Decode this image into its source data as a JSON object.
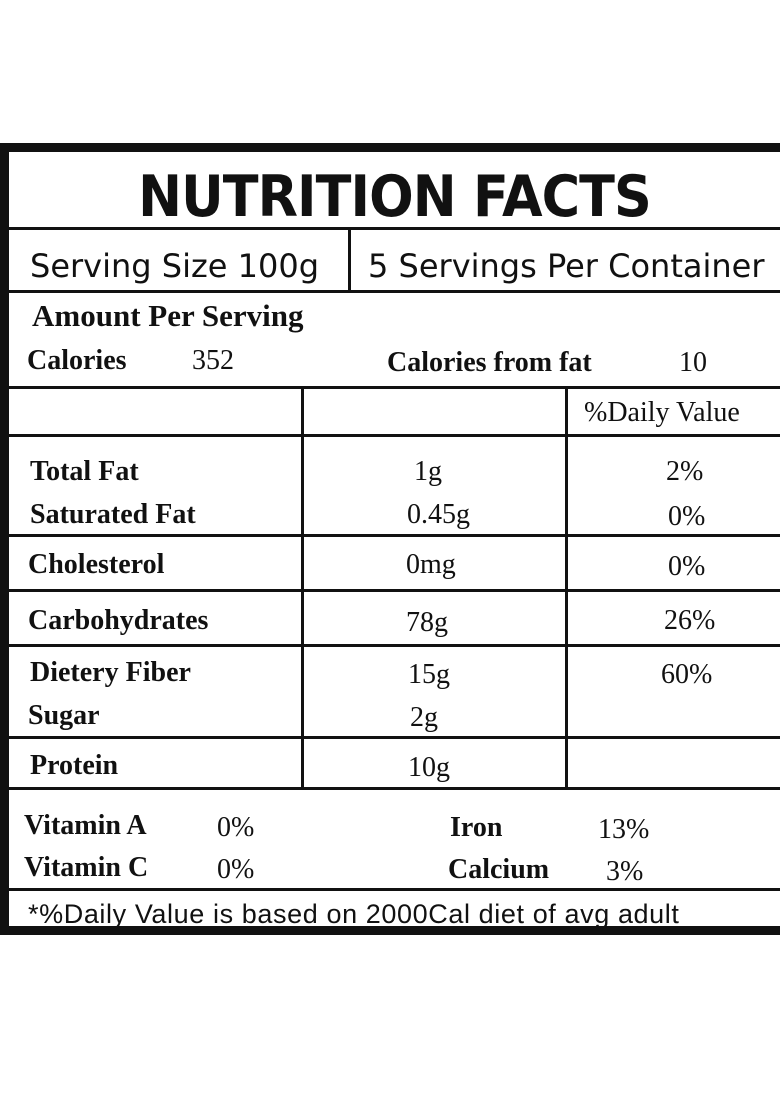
{
  "title": "NUTRITION FACTS",
  "serving": {
    "size": "Serving Size 100g",
    "per_container": "5 Servings Per Container"
  },
  "amount_header": "Amount Per Serving",
  "calories": {
    "label": "Calories",
    "value": "352",
    "fat_label": "Calories from fat",
    "fat_value": "10"
  },
  "dv_header": "%Daily Value",
  "nutrients": {
    "total_fat": {
      "name": "Total Fat",
      "amount": "1g",
      "dv": "2%"
    },
    "saturated_fat": {
      "name": "Saturated Fat",
      "amount": "0.45g",
      "dv": "0%"
    },
    "cholesterol": {
      "name": "Cholesterol",
      "amount": "0mg",
      "dv": "0%"
    },
    "carbohydrates": {
      "name": "Carbohydrates",
      "amount": "78g",
      "dv": "26%"
    },
    "fiber": {
      "name": "Dietery Fiber",
      "amount": "15g",
      "dv": "60%"
    },
    "sugar": {
      "name": "Sugar",
      "amount": "2g"
    },
    "protein": {
      "name": "Protein",
      "amount": "10g"
    }
  },
  "vitamins": {
    "vitamin_a": {
      "name": "Vitamin A",
      "value": "0%"
    },
    "vitamin_c": {
      "name": "Vitamin C",
      "value": "0%"
    },
    "iron": {
      "name": "Iron",
      "value": "13%"
    },
    "calcium": {
      "name": "Calcium",
      "value": "3%"
    }
  },
  "footnote": "*%Daily Value is based on 2000Cal diet of avg adult"
}
